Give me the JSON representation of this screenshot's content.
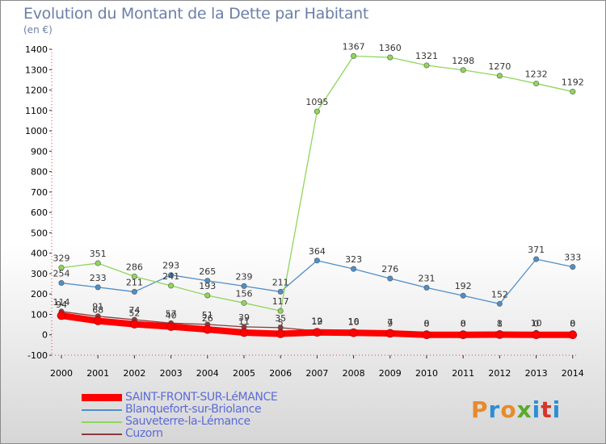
{
  "title": "Evolution du Montant de la Dette par Habitant",
  "subtitle": "(en €)",
  "logo": {
    "text": [
      "P",
      "r",
      "o",
      "x",
      "i",
      "t",
      "i"
    ],
    "colors": [
      "#e98a2b",
      "#2b8fd6",
      "#e98a2b",
      "#5aaa2b",
      "#2b8fd6",
      "#d6352b",
      "#2b8fd6"
    ]
  },
  "chart_data": {
    "type": "line",
    "title": "Evolution du Montant de la Dette par Habitant",
    "ylabel": "(en €)",
    "x": [
      "2000",
      "2001",
      "2002",
      "2003",
      "2004",
      "2005",
      "2006",
      "2007",
      "2008",
      "2009",
      "2010",
      "2011",
      "2012",
      "2013",
      "2014"
    ],
    "ylim": [
      -100,
      1400
    ],
    "yticks": [
      -100,
      0,
      100,
      200,
      300,
      400,
      500,
      600,
      700,
      800,
      900,
      1000,
      1100,
      1200,
      1300,
      1400
    ],
    "grid": false,
    "legend_position": "bottom-left",
    "series": [
      {
        "name": "SAINT-FRONT-SUR-LéMANCE",
        "color": "#ff0000",
        "values": [
          94,
          68,
          52,
          40,
          26,
          11,
          5,
          12,
          10,
          7,
          0,
          0,
          1,
          0,
          0
        ],
        "labels": [
          "94",
          "68",
          "52",
          "40",
          "26",
          "11",
          "5",
          "12",
          "10",
          "7",
          "0",
          "0",
          "1",
          "0",
          "0"
        ]
      },
      {
        "name": "Blanquefort-sur-Briolance",
        "color": "#4f8fc8",
        "values": [
          254,
          233,
          211,
          293,
          265,
          239,
          211,
          364,
          323,
          276,
          231,
          192,
          152,
          371,
          333
        ],
        "labels": [
          "254",
          "233",
          "211",
          "293",
          "265",
          "239",
          "211",
          "364",
          "323",
          "276",
          "231",
          "192",
          "152",
          "371",
          "333"
        ]
      },
      {
        "name": "Sauveterre-la-Lémance",
        "color": "#8fd65a",
        "values": [
          329,
          351,
          286,
          241,
          193,
          156,
          117,
          1095,
          1367,
          1360,
          1321,
          1298,
          1270,
          1232,
          1192
        ],
        "labels": [
          "329",
          "351",
          "286",
          "241",
          "193",
          "156",
          "117",
          "1095",
          "1367",
          "1360",
          "1321",
          "1298",
          "1270",
          "1232",
          "1192"
        ]
      },
      {
        "name": "Cuzorn",
        "color": "#8b3a3a",
        "values": [
          114,
          91,
          74,
          57,
          51,
          39,
          35,
          19,
          16,
          9,
          8,
          8,
          8,
          10,
          8
        ],
        "labels": [
          "114",
          "91",
          "74",
          "57",
          "51",
          "39",
          "35",
          "19",
          "16",
          "9",
          "8",
          "8",
          "8",
          "10",
          "8"
        ]
      }
    ]
  }
}
